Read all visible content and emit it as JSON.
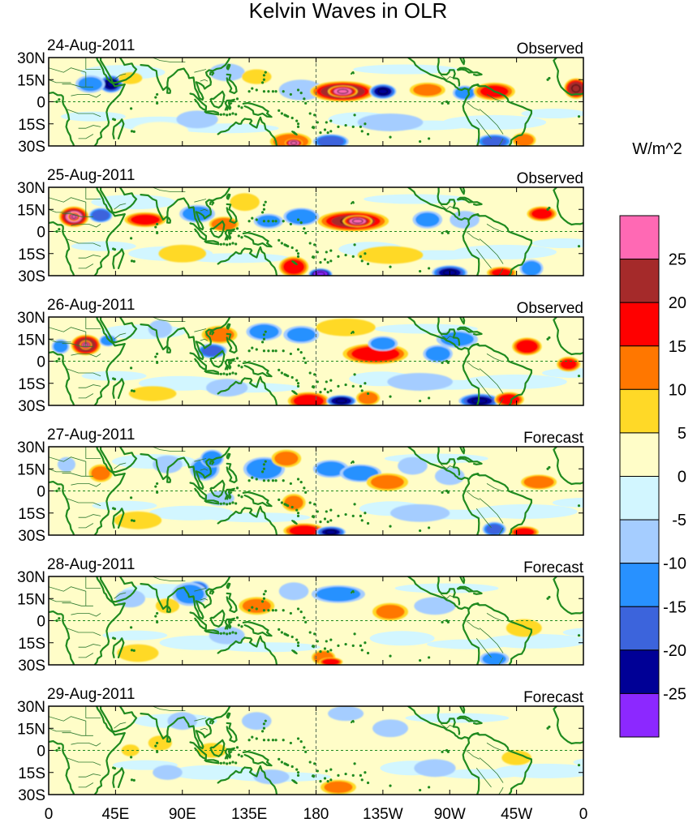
{
  "title": "Kelvin Waves in OLR",
  "units": "W/m^2",
  "colors": {
    "coast": "#1f8a1f",
    "border": "#2f7a2f",
    "frame": "#000000",
    "guide": "#1f8a1f"
  },
  "color_scale": {
    "labels": [
      "25",
      "20",
      "15",
      "10",
      "5",
      "0",
      "-5",
      "-10",
      "-15",
      "-20",
      "-25"
    ],
    "colors": [
      "#ff69b4",
      "#a52a2a",
      "#ff0000",
      "#ff7700",
      "#ffd927",
      "#fffdc8",
      "#d2f6ff",
      "#a5cdff",
      "#2891ff",
      "#3c64dc",
      "#000096",
      "#8c28ff"
    ]
  },
  "x_axis": {
    "labels": [
      "0",
      "45E",
      "90E",
      "135E",
      "180",
      "135W",
      "90W",
      "45W",
      "0"
    ]
  },
  "y_axis": {
    "labels": [
      "30N",
      "15N",
      "0",
      "15S",
      "30S"
    ]
  },
  "panels": [
    {
      "date": "24-Aug-2011",
      "type": "Observed",
      "blobs": [
        [
          10,
          10,
          8,
          5,
          4
        ],
        [
          12,
          15,
          5,
          7,
          4
        ],
        [
          42,
          12,
          8,
          6,
          -22
        ],
        [
          28,
          12,
          10,
          6,
          -10
        ],
        [
          55,
          16,
          8,
          4,
          6
        ],
        [
          170,
          8,
          15,
          7,
          -8
        ],
        [
          198,
          7,
          22,
          7,
          24
        ],
        [
          198,
          7,
          10,
          4,
          28
        ],
        [
          225,
          7,
          9,
          5,
          -22
        ],
        [
          255,
          8,
          12,
          5,
          10
        ],
        [
          280,
          6,
          8,
          5,
          -12
        ],
        [
          300,
          7,
          14,
          6,
          15
        ],
        [
          355,
          9,
          8,
          7,
          22
        ],
        [
          163,
          -27,
          14,
          6,
          14
        ],
        [
          165,
          -28,
          6,
          3,
          27
        ],
        [
          190,
          -27,
          12,
          5,
          -18
        ],
        [
          300,
          -27,
          12,
          5,
          -15
        ],
        [
          320,
          -26,
          8,
          5,
          12
        ],
        [
          100,
          -12,
          14,
          6,
          -6
        ],
        [
          230,
          -14,
          22,
          6,
          -6
        ],
        [
          120,
          20,
          12,
          6,
          -8
        ],
        [
          140,
          17,
          10,
          5,
          7
        ],
        [
          75,
          -20,
          18,
          6,
          4
        ]
      ]
    },
    {
      "date": "25-Aug-2011",
      "type": "Observed",
      "blobs": [
        [
          17,
          10,
          10,
          7,
          25
        ],
        [
          17,
          10,
          4,
          3,
          28
        ],
        [
          35,
          11,
          8,
          5,
          -18
        ],
        [
          65,
          8,
          14,
          5,
          16
        ],
        [
          100,
          12,
          12,
          6,
          -12
        ],
        [
          118,
          5,
          10,
          5,
          14
        ],
        [
          148,
          7,
          10,
          5,
          -10
        ],
        [
          170,
          10,
          12,
          6,
          -14
        ],
        [
          205,
          7,
          24,
          7,
          20
        ],
        [
          208,
          7,
          10,
          4,
          25
        ],
        [
          255,
          8,
          10,
          6,
          -10
        ],
        [
          280,
          8,
          10,
          6,
          -8
        ],
        [
          332,
          12,
          10,
          5,
          16
        ],
        [
          165,
          -24,
          10,
          7,
          17
        ],
        [
          183,
          -29,
          8,
          4,
          -26
        ],
        [
          270,
          -28,
          12,
          5,
          -20
        ],
        [
          305,
          -28,
          10,
          4,
          15
        ],
        [
          325,
          -25,
          8,
          6,
          -12
        ],
        [
          230,
          -16,
          22,
          6,
          6
        ],
        [
          90,
          -15,
          16,
          6,
          5
        ],
        [
          132,
          20,
          10,
          6,
          8
        ]
      ]
    },
    {
      "date": "26-Aug-2011",
      "type": "Observed",
      "blobs": [
        [
          25,
          11,
          10,
          7,
          24
        ],
        [
          25,
          11,
          4,
          3,
          27
        ],
        [
          40,
          14,
          6,
          4,
          -12
        ],
        [
          8,
          10,
          6,
          5,
          -10
        ],
        [
          75,
          22,
          8,
          6,
          -8
        ],
        [
          115,
          18,
          12,
          6,
          12
        ],
        [
          110,
          7,
          10,
          5,
          -16
        ],
        [
          145,
          20,
          12,
          6,
          -12
        ],
        [
          170,
          18,
          12,
          6,
          -10
        ],
        [
          200,
          23,
          20,
          6,
          8
        ],
        [
          220,
          5,
          22,
          7,
          18
        ],
        [
          225,
          12,
          10,
          5,
          -12
        ],
        [
          262,
          5,
          10,
          6,
          -12
        ],
        [
          275,
          15,
          14,
          6,
          -10
        ],
        [
          322,
          10,
          10,
          6,
          18
        ],
        [
          350,
          -2,
          8,
          5,
          15
        ],
        [
          175,
          -27,
          14,
          6,
          18
        ],
        [
          197,
          -27,
          10,
          4,
          -24
        ],
        [
          215,
          -25,
          8,
          5,
          12
        ],
        [
          290,
          -27,
          14,
          5,
          -20
        ],
        [
          310,
          -26,
          10,
          5,
          17
        ],
        [
          120,
          -18,
          14,
          6,
          -8
        ],
        [
          70,
          -22,
          16,
          5,
          6
        ],
        [
          250,
          -14,
          22,
          6,
          -6
        ]
      ]
    },
    {
      "date": "27-Aug-2011",
      "type": "Forecast",
      "blobs": [
        [
          35,
          12,
          8,
          6,
          10
        ],
        [
          12,
          18,
          6,
          5,
          -6
        ],
        [
          80,
          18,
          10,
          6,
          -8
        ],
        [
          105,
          15,
          10,
          8,
          -12
        ],
        [
          110,
          22,
          8,
          6,
          -14
        ],
        [
          145,
          15,
          14,
          8,
          -14
        ],
        [
          160,
          22,
          10,
          6,
          10
        ],
        [
          190,
          15,
          12,
          6,
          -12
        ],
        [
          210,
          12,
          14,
          6,
          -14
        ],
        [
          228,
          6,
          14,
          6,
          10
        ],
        [
          245,
          17,
          10,
          6,
          -8
        ],
        [
          270,
          10,
          10,
          6,
          -8
        ],
        [
          330,
          6,
          12,
          5,
          14
        ],
        [
          172,
          -27,
          14,
          5,
          17
        ],
        [
          190,
          -28,
          10,
          4,
          -20
        ],
        [
          300,
          -26,
          8,
          5,
          -15
        ],
        [
          320,
          -28,
          10,
          4,
          16
        ],
        [
          115,
          -5,
          10,
          5,
          -8
        ],
        [
          60,
          -20,
          16,
          6,
          5
        ],
        [
          250,
          -15,
          20,
          6,
          -5
        ],
        [
          165,
          -8,
          8,
          6,
          10
        ]
      ]
    },
    {
      "date": "28-Aug-2011",
      "type": "Forecast",
      "blobs": [
        [
          100,
          22,
          8,
          5,
          -16
        ],
        [
          95,
          18,
          12,
          8,
          -10
        ],
        [
          80,
          10,
          8,
          5,
          6
        ],
        [
          140,
          10,
          12,
          6,
          10
        ],
        [
          165,
          20,
          10,
          6,
          -8
        ],
        [
          195,
          18,
          18,
          6,
          -12
        ],
        [
          230,
          6,
          12,
          6,
          10
        ],
        [
          185,
          -25,
          8,
          5,
          14
        ],
        [
          190,
          -28,
          8,
          3,
          18
        ],
        [
          300,
          -26,
          10,
          5,
          -10
        ],
        [
          55,
          15,
          10,
          6,
          -6
        ],
        [
          120,
          -10,
          12,
          6,
          -5
        ],
        [
          260,
          10,
          14,
          6,
          -6
        ],
        [
          320,
          -5,
          12,
          6,
          5
        ],
        [
          60,
          -22,
          14,
          6,
          5
        ]
      ]
    },
    {
      "date": "29-Aug-2011",
      "type": "Forecast",
      "blobs": [
        [
          90,
          20,
          10,
          6,
          -8
        ],
        [
          140,
          20,
          10,
          6,
          -8
        ],
        [
          110,
          0,
          10,
          5,
          8
        ],
        [
          75,
          5,
          8,
          5,
          6
        ],
        [
          200,
          25,
          12,
          5,
          -6
        ],
        [
          230,
          15,
          12,
          6,
          -7
        ],
        [
          195,
          -25,
          12,
          5,
          10
        ],
        [
          80,
          -15,
          10,
          5,
          -5
        ],
        [
          150,
          -18,
          12,
          5,
          -5
        ],
        [
          260,
          -12,
          14,
          6,
          -5
        ],
        [
          315,
          -5,
          10,
          5,
          5
        ],
        [
          55,
          0,
          6,
          4,
          5
        ]
      ]
    }
  ]
}
